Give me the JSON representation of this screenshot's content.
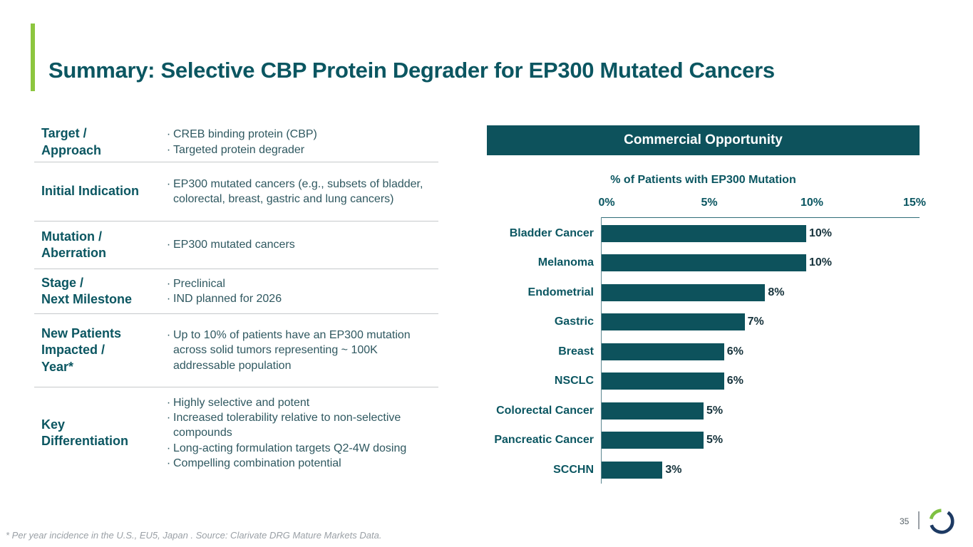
{
  "slide": {
    "title": "Summary: Selective CBP Protein Degrader for EP300 Mutated Cancers",
    "page_number": "35",
    "footnote": "* Per year incidence in the U.S., EU5, Japan . Source: Clarivate DRG Mature Markets Data."
  },
  "icons": {
    "bullet_char": "·",
    "logo": "ring-logo"
  },
  "colors": {
    "accent_green": "#8dc63f",
    "brand_teal": "#0b5661",
    "bar_teal": "#0d525c",
    "value_text": "#17333c",
    "logo_navy": "#1d3a63",
    "logo_green": "#7fc142"
  },
  "table": {
    "rows": [
      {
        "label": "Target /\nApproach",
        "bullets": [
          "CREB binding protein (CBP)",
          "Targeted protein degrader"
        ]
      },
      {
        "label": "Initial Indication",
        "bullets": [
          "EP300 mutated cancers (e.g., subsets of bladder, colorectal, breast, gastric and lung cancers)"
        ]
      },
      {
        "label": "Mutation /\nAberration",
        "bullets": [
          "EP300 mutated cancers"
        ]
      },
      {
        "label": "Stage /\nNext Milestone",
        "bullets": [
          "Preclinical",
          "IND planned for 2026"
        ]
      },
      {
        "label": "New Patients\nImpacted /\nYear*",
        "bullets": [
          "Up to 10% of patients have an EP300 mutation across solid tumors representing ~ 100K addressable population"
        ]
      },
      {
        "label": "Key\nDifferentiation",
        "bullets": [
          "Highly selective and potent",
          "Increased tolerability relative to non-selective compounds",
          "Long-acting formulation targets Q2-4W dosing",
          "Compelling combination potential"
        ]
      }
    ]
  },
  "chart_data": {
    "type": "bar",
    "orientation": "horizontal",
    "panel_title": "Commercial Opportunity",
    "title": "% of Patients with EP300 Mutation",
    "categories": [
      "Bladder Cancer",
      "Melanoma",
      "Endometrial",
      "Gastric",
      "Breast",
      "NSCLC",
      "Colorectal Cancer",
      "Pancreatic Cancer",
      "SCCHN"
    ],
    "values": [
      10,
      10,
      8,
      7,
      6,
      6,
      5,
      5,
      3
    ],
    "value_labels": [
      "10%",
      "10%",
      "8%",
      "7%",
      "6%",
      "6%",
      "5%",
      "5%",
      "3%"
    ],
    "x_ticks": [
      "0%",
      "5%",
      "10%",
      "15%"
    ],
    "x_tick_values": [
      0,
      5,
      10,
      15
    ],
    "xlim": [
      0,
      15
    ],
    "grid": false,
    "legend": "none",
    "bar_color": "#0d525c"
  }
}
